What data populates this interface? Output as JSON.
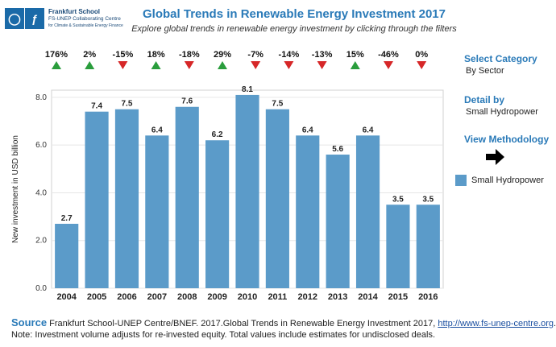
{
  "header": {
    "logo_line1": "Frankfurt School",
    "logo_line2": "FS-UNEP Collaborating Centre",
    "logo_line3": "for Climate & Sustainable Energy Finance",
    "title": "Global Trends in Renewable Energy Investment 2017",
    "subtitle": "Explore global trends in renewable energy investment by clicking through the filters"
  },
  "side_panel": {
    "category_heading": "Select Category",
    "category_value": "By Sector",
    "detail_heading": "Detail by",
    "detail_value": "Small Hydropower",
    "methodology_label": "View Methodology",
    "legend_label": "Small Hydropower",
    "legend_color": "#5b9bc9"
  },
  "footer": {
    "source_label": "Source",
    "source_text": "Frankfurt School-UNEP Centre/BNEF. 2017.Global Trends in Renewable Energy Investment 2017,",
    "source_link": "http://www.fs-unep-centre.org",
    "source_end": ".",
    "note": "Note: Investment volume adjusts for re-invested equity. Total values include estimates for undisclosed deals."
  },
  "chart_data": {
    "type": "bar",
    "categories": [
      "2004",
      "2005",
      "2006",
      "2007",
      "2008",
      "2009",
      "2010",
      "2011",
      "2012",
      "2013",
      "2014",
      "2015",
      "2016"
    ],
    "values": [
      2.7,
      7.4,
      7.5,
      6.4,
      7.6,
      6.2,
      8.1,
      7.5,
      6.4,
      5.6,
      6.4,
      3.5,
      3.5
    ],
    "data_labels": [
      "2.7",
      "7.4",
      "7.5",
      "6.4",
      "7.6",
      "6.2",
      "8.1",
      "7.5",
      "6.4",
      "5.6",
      "6.4",
      "3.5",
      "3.5"
    ],
    "growth": [
      "176%",
      "2%",
      "-15%",
      "18%",
      "-18%",
      "29%",
      "-7%",
      "-14%",
      "-13%",
      "15%",
      "-46%",
      "0%"
    ],
    "growth_direction": [
      "up",
      "up",
      "down",
      "up",
      "down",
      "up",
      "down",
      "down",
      "down",
      "up",
      "down",
      "down"
    ],
    "ylabel": "New investment in USD billion",
    "yticks": [
      "0.0",
      "2.0",
      "4.0",
      "6.0",
      "8.0"
    ],
    "ylim": [
      0,
      8.3
    ],
    "bar_color": "#5b9bc9",
    "up_color": "#2a9d3c",
    "down_color": "#d62728",
    "grid": true
  }
}
